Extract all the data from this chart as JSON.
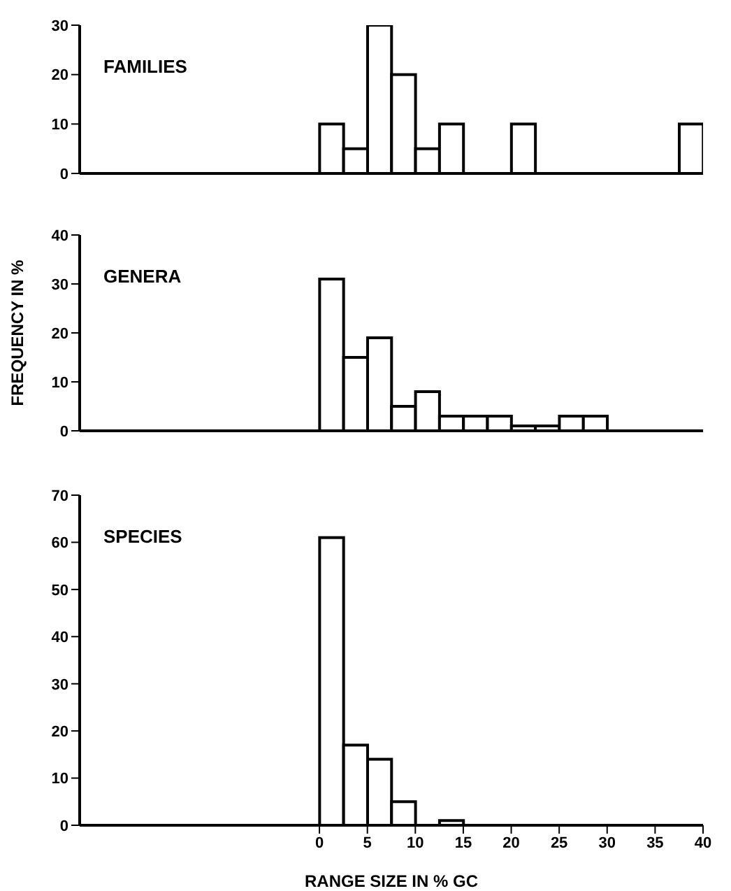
{
  "chart_data": [
    {
      "type": "histogram",
      "title": "FAMILIES",
      "bins": [
        0,
        2.5,
        5,
        7.5,
        10,
        12.5,
        15,
        17.5,
        20,
        22.5,
        25,
        27.5,
        30,
        32.5,
        35,
        37.5,
        40
      ],
      "values": [
        10,
        5,
        30,
        20,
        5,
        10,
        0,
        0,
        10,
        0,
        0,
        0,
        0,
        0,
        0,
        10
      ],
      "color": "#ffffff",
      "xlim": [
        -25,
        40
      ],
      "ylim": [
        0,
        30
      ],
      "yticks": [
        0,
        10,
        20,
        30
      ],
      "tick_labels": "y",
      "grid": false,
      "legend": false
    },
    {
      "type": "histogram",
      "title": "GENERA",
      "ylabel": "FREQUENCY IN %",
      "bins": [
        0,
        2.5,
        5,
        7.5,
        10,
        12.5,
        15,
        17.5,
        20,
        22.5,
        25,
        27.5,
        30
      ],
      "values": [
        31,
        15,
        19,
        5,
        8,
        3,
        3,
        3,
        1,
        1,
        3,
        3
      ],
      "color": "#ffffff",
      "xlim": [
        -25,
        40
      ],
      "ylim": [
        0,
        40
      ],
      "yticks": [
        0,
        10,
        20,
        30,
        40
      ],
      "tick_labels": "y",
      "grid": false,
      "legend": false
    },
    {
      "type": "histogram",
      "title": "SPECIES",
      "xlabel": "RANGE SIZE IN % GC",
      "bins": [
        0,
        2.5,
        5,
        7.5,
        10,
        12.5,
        15
      ],
      "values": [
        61,
        17,
        14,
        5,
        0,
        1
      ],
      "color": "#ffffff",
      "xlim": [
        -25,
        40
      ],
      "xticks": [
        0,
        5,
        10,
        15,
        20,
        25,
        30,
        35,
        40
      ],
      "ylim": [
        0,
        70
      ],
      "yticks": [
        0,
        10,
        20,
        30,
        40,
        50,
        60,
        70
      ],
      "grid": false,
      "legend": false
    }
  ]
}
